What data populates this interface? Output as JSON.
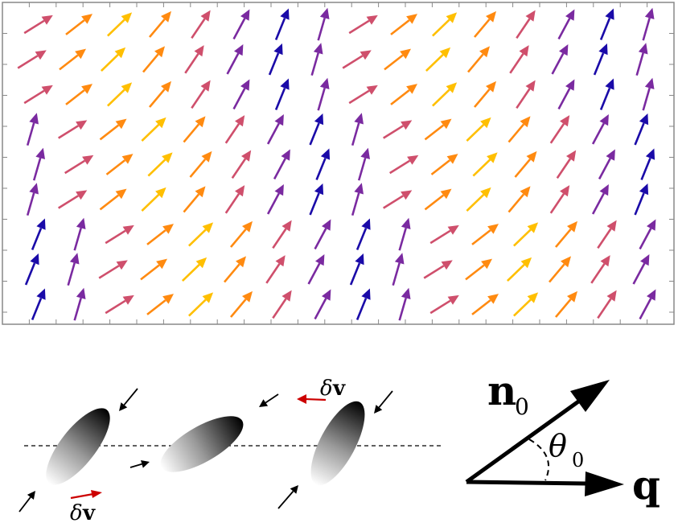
{
  "field_panel": {
    "rows": 9,
    "columns": 16,
    "phase_cycle": [
      "#cf4f6c",
      "#ff8a10",
      "#ffbf00",
      "#ff8a10",
      "#cf4f6c",
      "#7a2aa0",
      "#1a0aa8",
      "#7a2aa0"
    ],
    "angle_cycle_deg": [
      32,
      38,
      44,
      50,
      56,
      62,
      68,
      74
    ]
  },
  "bottom_panel": {
    "velocity_color": "#cc0000",
    "labels": {
      "dv_lower_delta": "δ",
      "dv_lower_v": "v",
      "dv_upper_delta": "δ",
      "dv_upper_v": "v",
      "n_letter": "n",
      "n_subscript": "0",
      "theta_letter": "θ",
      "theta_subscript": "0",
      "q_letter": "q"
    }
  }
}
